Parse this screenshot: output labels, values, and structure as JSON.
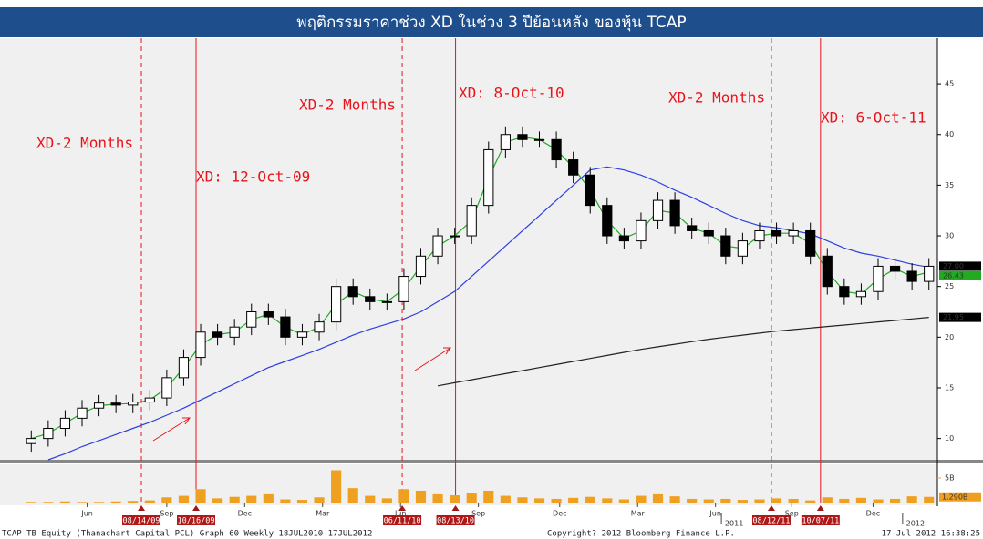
{
  "chart_data": {
    "type": "candlestick",
    "title": "พฤติกรรมราคาช่วง XD ในช่วง 3 ปีย้อนหลัง ของหุ้น TCAP",
    "footer_left": "TCAP TB Equity (Thanachart Capital PCL) Graph 60  Weekly 18JUL2010-17JUL2012",
    "footer_center": "Copyright? 2012 Bloomberg Finance L.P.",
    "footer_right": "17-Jul-2012 16:38:25",
    "ylim": [
      7.9,
      49.5
    ],
    "yticks": [
      10,
      15,
      20,
      25,
      30,
      35,
      40,
      45
    ],
    "xlim": [
      -0.5,
      53.5
    ],
    "xticks": [
      {
        "value": 3.3,
        "label": "Jun"
      },
      {
        "value": 8.0,
        "label": "Sep"
      },
      {
        "value": 12.6,
        "label": "Dec"
      },
      {
        "value": 17.2,
        "label": "Mar"
      },
      {
        "value": 21.8,
        "label": "Jun"
      },
      {
        "value": 26.4,
        "label": "Sep"
      },
      {
        "value": 31.2,
        "label": "Dec"
      },
      {
        "value": 35.8,
        "label": "Mar"
      },
      {
        "value": 40.4,
        "label": "Jun"
      },
      {
        "value": 44.9,
        "label": "Sep"
      },
      {
        "value": 49.7,
        "label": "Dec"
      }
    ],
    "year_ticks": [
      {
        "value": 41.5,
        "label": "2011"
      },
      {
        "value": 52.2,
        "label": "2012"
      }
    ],
    "open": [
      9.5,
      10,
      11,
      12,
      13,
      13.5,
      13.3,
      13.6,
      14,
      16,
      18,
      20.5,
      20,
      21,
      22.5,
      22,
      20,
      20.5,
      21.5,
      25,
      24,
      23.5,
      23.5,
      26,
      28,
      30,
      30,
      33,
      38.5,
      40,
      39.5,
      39.5,
      37.5,
      36,
      33,
      30,
      29.5,
      31.5,
      33.5,
      31,
      30.5,
      30,
      28,
      29.5,
      30.5,
      30,
      30.5,
      28,
      25,
      24,
      24.5,
      27,
      26.5,
      25.5
    ],
    "high": [
      10.8,
      11.8,
      12.8,
      13.8,
      14.3,
      14.3,
      14.4,
      14.8,
      16.8,
      18.8,
      21.3,
      21.3,
      21.8,
      23.3,
      23.3,
      22.8,
      21.3,
      22.3,
      25.8,
      25.8,
      24.8,
      24.3,
      26.8,
      28.8,
      30.8,
      30.8,
      33.8,
      39.3,
      40.8,
      40.8,
      40.3,
      40.3,
      38.3,
      36.8,
      33.8,
      30.8,
      32.3,
      34.3,
      34.3,
      31.8,
      31.3,
      30.8,
      30.3,
      31.3,
      31.3,
      31.3,
      31.3,
      28.8,
      25.8,
      25.3,
      27.8,
      27.8,
      27.3,
      27.8
    ],
    "low": [
      8.7,
      9.2,
      10.2,
      11.2,
      12.2,
      12.5,
      12.5,
      12.8,
      13.2,
      15.2,
      17.2,
      19.2,
      19.2,
      20.2,
      21.2,
      19.2,
      19.2,
      19.7,
      20.7,
      23.2,
      22.7,
      22.7,
      22.7,
      25.2,
      27.2,
      29.2,
      29.2,
      32.2,
      37.7,
      38.7,
      38.7,
      36.7,
      35.2,
      32.2,
      29.2,
      28.7,
      28.7,
      30.7,
      30.2,
      29.7,
      29.2,
      27.2,
      27.2,
      28.7,
      29.2,
      29.2,
      27.2,
      24.2,
      23.2,
      23.2,
      23.7,
      25.7,
      24.7,
      24.7
    ],
    "close": [
      10,
      11,
      12,
      13,
      13.5,
      13.3,
      13.6,
      14,
      16,
      18,
      20.5,
      20,
      21,
      22.5,
      22,
      20,
      20.5,
      21.5,
      25,
      24,
      23.5,
      23.5,
      26,
      28,
      30,
      30,
      33,
      38.5,
      40,
      39.5,
      39.5,
      37.5,
      36,
      33,
      30,
      29.5,
      31.5,
      33.5,
      31,
      30.5,
      30,
      28,
      29.5,
      30.5,
      30,
      30.5,
      28,
      25,
      24,
      24.5,
      27,
      26.5,
      25.5,
      27
    ],
    "up_color": "#ffffff",
    "down_color": "#000000",
    "lines": [
      {
        "color": "#22aa22",
        "values": [
          10,
          10.5,
          11.5,
          12.5,
          13.25,
          13.4,
          13.45,
          13.8,
          15,
          17,
          19.25,
          20.25,
          20.5,
          21.75,
          22.25,
          21,
          20.25,
          21,
          23.25,
          24.5,
          23.75,
          23.5,
          24.75,
          27,
          29,
          30,
          31.5,
          35.75,
          39.25,
          39.75,
          39.5,
          38.5,
          36.75,
          34.5,
          31.5,
          29.75,
          30.5,
          32.5,
          32.25,
          30.75,
          30.25,
          29,
          28.75,
          30,
          30.25,
          30.25,
          29.25,
          26.5,
          24.5,
          24.25,
          25.75,
          26.75,
          26,
          26.43
        ]
      },
      {
        "color": "#2f3fe0",
        "values": [
          null,
          7.9,
          8.5,
          9.2,
          9.8,
          10.4,
          11,
          11.6,
          12.3,
          13,
          13.8,
          14.6,
          15.4,
          16.2,
          17,
          17.6,
          18.2,
          18.8,
          19.5,
          20.2,
          20.8,
          21.3,
          21.8,
          22.5,
          23.5,
          24.5,
          26,
          27.5,
          29,
          30.5,
          32,
          33.5,
          35,
          36.5,
          36.8,
          36.5,
          36,
          35.3,
          34.5,
          33.8,
          33,
          32.2,
          31.5,
          31,
          30.8,
          30.5,
          30.2,
          29.5,
          28.8,
          28.3,
          28,
          27.6,
          27.2,
          26.9
        ]
      },
      {
        "color": "#222222",
        "values": [
          null,
          null,
          null,
          null,
          null,
          null,
          null,
          null,
          null,
          null,
          null,
          null,
          null,
          null,
          null,
          null,
          null,
          null,
          null,
          null,
          null,
          null,
          null,
          null,
          15.2,
          15.5,
          15.8,
          16.1,
          16.4,
          16.7,
          17,
          17.3,
          17.6,
          17.9,
          18.2,
          18.5,
          18.8,
          19.05,
          19.3,
          19.55,
          19.8,
          20,
          20.2,
          20.4,
          20.6,
          20.75,
          20.9,
          21.05,
          21.2,
          21.35,
          21.5,
          21.65,
          21.8,
          21.95
        ]
      }
    ],
    "price_tags": [
      {
        "value": 27,
        "label": "27.00",
        "color": "#000000"
      },
      {
        "value": 26.43,
        "label": "26.43",
        "color": "#22aa22"
      },
      {
        "value": 21.95,
        "label": "21.95",
        "color": "#000000"
      }
    ],
    "volume": {
      "color": "#f0a020",
      "ylim": [
        0,
        7.3
      ],
      "yticks": [
        {
          "value": 5,
          "label": "5B"
        }
      ],
      "values": [
        0.3,
        0.3,
        0.4,
        0.3,
        0.3,
        0.4,
        0.5,
        0.6,
        1.2,
        1.5,
        2.8,
        1.0,
        1.3,
        1.5,
        1.8,
        0.8,
        0.7,
        1.2,
        6.5,
        3.0,
        1.5,
        1.0,
        2.8,
        2.5,
        1.8,
        1.6,
        2.0,
        2.5,
        1.5,
        1.2,
        1.0,
        0.9,
        1.1,
        1.3,
        1.0,
        0.8,
        1.5,
        1.8,
        1.4,
        0.9,
        0.8,
        0.9,
        0.7,
        0.8,
        1.0,
        0.9,
        0.6,
        1.2,
        0.9,
        1.1,
        0.8,
        0.9,
        1.4,
        1.29
      ],
      "tag": {
        "value": 1.29,
        "label": "1.290B"
      }
    },
    "events": [
      {
        "x": 6.5,
        "style": "dashed",
        "flag": "08/14/09"
      },
      {
        "x": 9.73,
        "style": "solid",
        "flag": "10/16/09"
      },
      {
        "x": 21.9,
        "style": "dashed",
        "flag": "06/11/10"
      },
      {
        "x": 25.05,
        "style": "solid",
        "flag": "08/13/10"
      },
      {
        "x": 43.7,
        "style": "dashed",
        "flag": "08/12/11"
      },
      {
        "x": 46.6,
        "style": "solid",
        "flag": "10/07/11"
      }
    ],
    "annotations": [
      "XD-2 Months",
      "XD: 12-Oct-09",
      "XD-2 Months",
      "XD: 8-Oct-10",
      "XD-2 Months",
      "XD: 6-Oct-11"
    ]
  }
}
